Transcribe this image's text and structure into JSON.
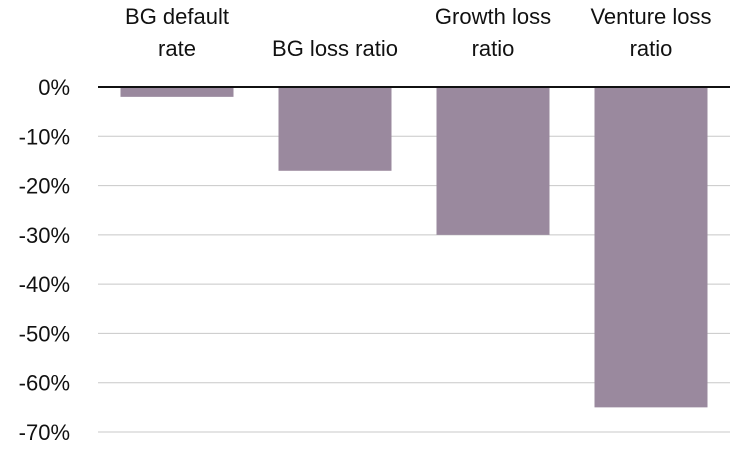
{
  "chart_data": {
    "type": "bar",
    "title": "",
    "xlabel": "",
    "ylabel": "",
    "categories": [
      [
        "BG default",
        "rate"
      ],
      [
        "BG loss ratio"
      ],
      [
        "Growth loss",
        "ratio"
      ],
      [
        "Venture loss",
        "ratio"
      ]
    ],
    "values": [
      -2,
      -17,
      -30,
      -65
    ],
    "ylim": [
      -70,
      0
    ],
    "yticks": [
      0,
      -10,
      -20,
      -30,
      -40,
      -50,
      -60,
      -70
    ],
    "ytick_labels": [
      "0%",
      "-10%",
      "-20%",
      "-30%",
      "-40%",
      "-50%",
      "-60%",
      "-70%"
    ],
    "grid": true,
    "category_axis_position": "top",
    "legend": "none",
    "colors": {
      "bar": "#9a899e",
      "grid": "#c8c8c8",
      "zero_line": "#111111",
      "text": "#111111"
    }
  }
}
